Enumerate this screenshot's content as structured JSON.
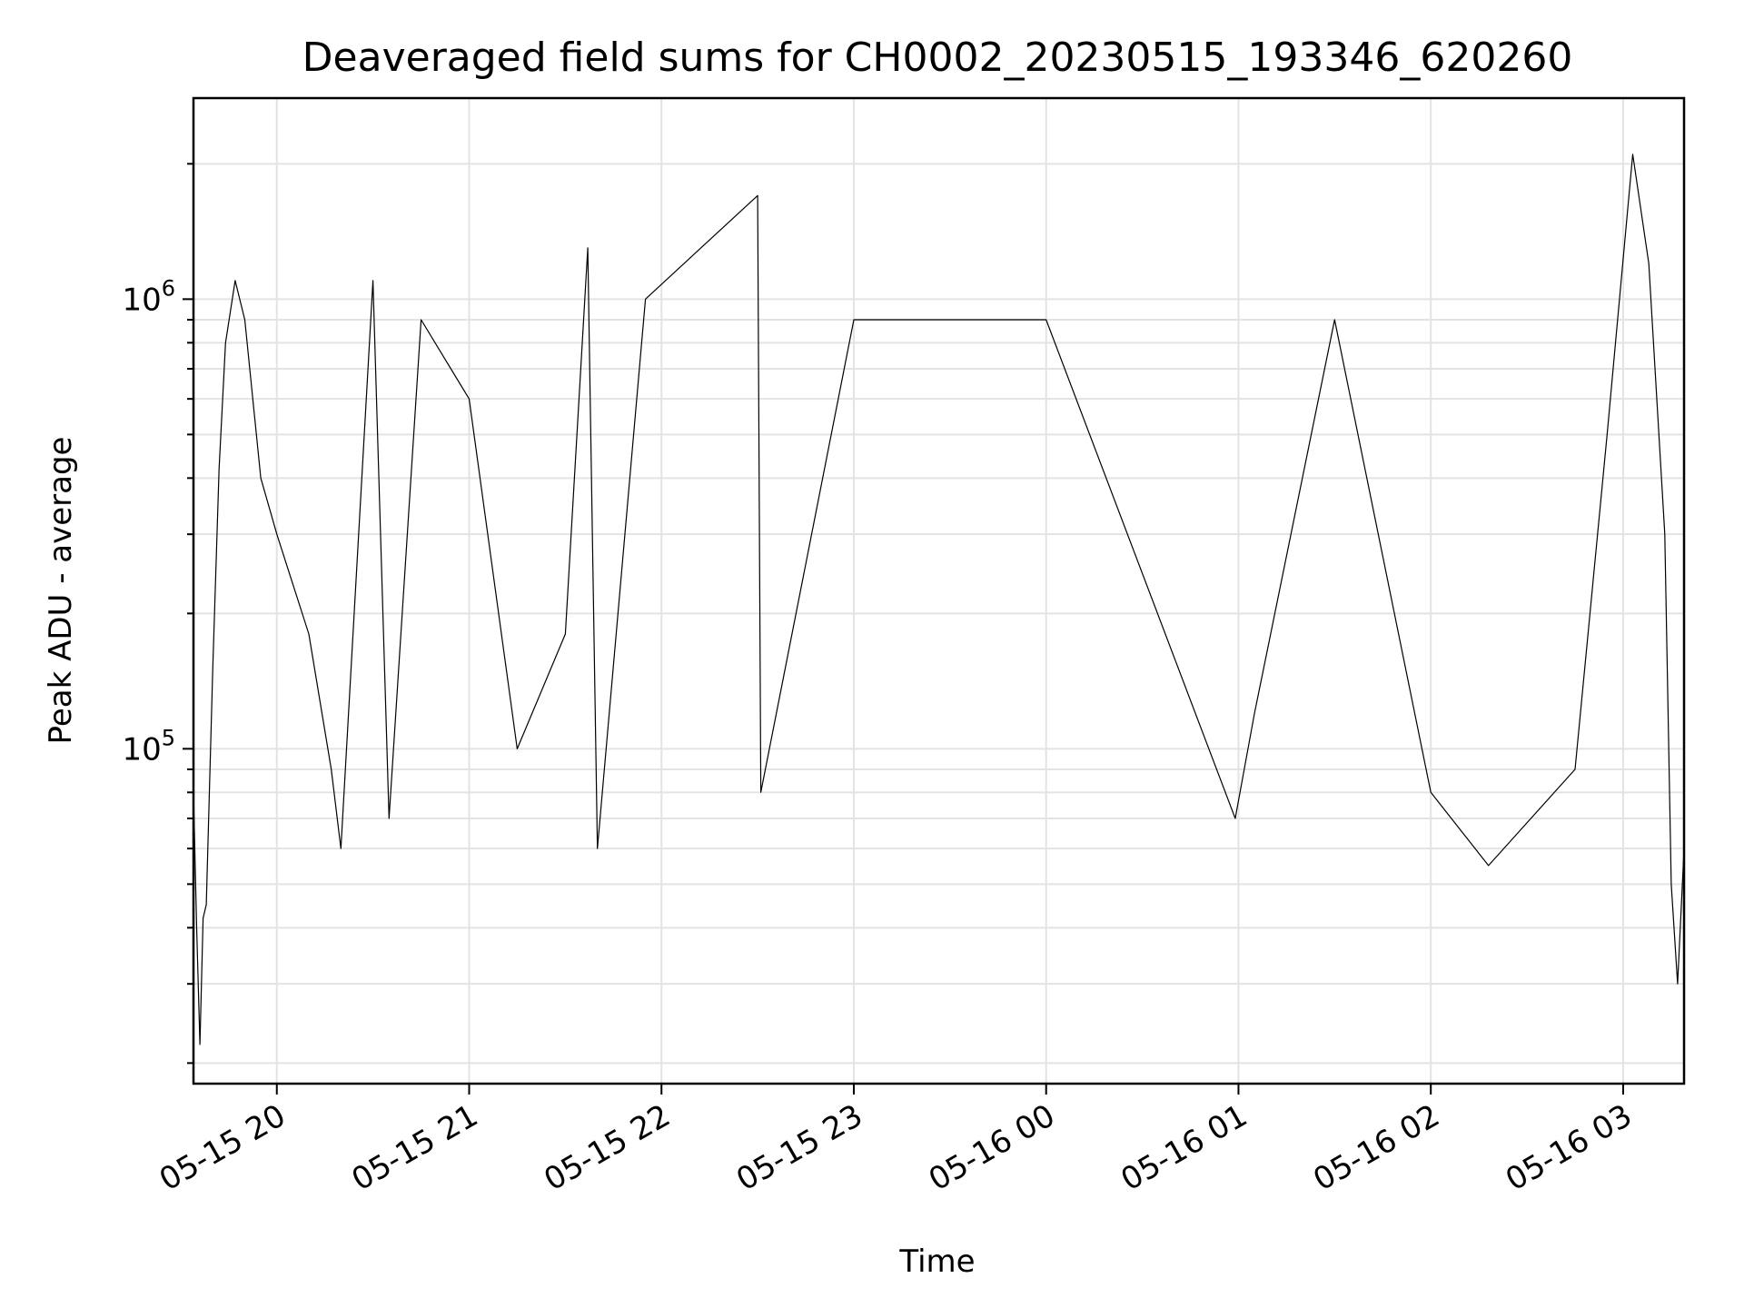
{
  "chart_data": {
    "type": "line",
    "title": "Deaveraged field sums for CH0002_20230515_193346_620260",
    "xlabel": "Time",
    "ylabel": "Peak ADU - average",
    "x_axis": {
      "type": "time",
      "range": [
        "2023-05-15 19:34",
        "2023-05-16 03:19"
      ],
      "ticks": [
        {
          "value": "2023-05-15 20:00",
          "label": "05-15 20"
        },
        {
          "value": "2023-05-15 21:00",
          "label": "05-15 21"
        },
        {
          "value": "2023-05-15 22:00",
          "label": "05-15 22"
        },
        {
          "value": "2023-05-15 23:00",
          "label": "05-15 23"
        },
        {
          "value": "2023-05-16 00:00",
          "label": "05-16 00"
        },
        {
          "value": "2023-05-16 01:00",
          "label": "05-16 01"
        },
        {
          "value": "2023-05-16 02:00",
          "label": "05-16 02"
        },
        {
          "value": "2023-05-16 03:00",
          "label": "05-16 03"
        }
      ]
    },
    "y_axis": {
      "scale": "log",
      "range": [
        18000,
        2800000
      ],
      "ticks": [
        {
          "value": 100000,
          "base": "10",
          "exp": "5"
        },
        {
          "value": 1000000,
          "base": "10",
          "exp": "6"
        }
      ]
    },
    "grid": true,
    "line_color": "#000000",
    "series": [
      {
        "values_note": "",
        "points": [
          [
            "2023-05-15 19:34",
            80000
          ],
          [
            "2023-05-15 19:35",
            40000
          ],
          [
            "2023-05-15 19:36",
            22000
          ],
          [
            "2023-05-15 19:37",
            42000
          ],
          [
            "2023-05-15 19:38",
            45000
          ],
          [
            "2023-05-15 19:40",
            150000
          ],
          [
            "2023-05-15 19:42",
            420000
          ],
          [
            "2023-05-15 19:44",
            800000
          ],
          [
            "2023-05-15 19:47",
            1100000
          ],
          [
            "2023-05-15 19:50",
            900000
          ],
          [
            "2023-05-15 19:55",
            400000
          ],
          [
            "2023-05-15 20:00",
            300000
          ],
          [
            "2023-05-15 20:10",
            180000
          ],
          [
            "2023-05-15 20:17",
            90000
          ],
          [
            "2023-05-15 20:20",
            60000
          ],
          [
            "2023-05-15 20:30",
            1100000
          ],
          [
            "2023-05-15 20:35",
            70000
          ],
          [
            "2023-05-15 20:45",
            900000
          ],
          [
            "2023-05-15 21:00",
            600000
          ],
          [
            "2023-05-15 21:15",
            100000
          ],
          [
            "2023-05-15 21:30",
            180000
          ],
          [
            "2023-05-15 21:37",
            1300000
          ],
          [
            "2023-05-15 21:40",
            60000
          ],
          [
            "2023-05-15 21:55",
            1000000
          ],
          [
            "2023-05-15 22:30",
            1700000
          ],
          [
            "2023-05-15 22:31",
            80000
          ],
          [
            "2023-05-15 23:00",
            900000
          ],
          [
            "2023-05-16 00:00",
            900000
          ],
          [
            "2023-05-16 00:59",
            70000
          ],
          [
            "2023-05-16 01:05",
            120000
          ],
          [
            "2023-05-16 01:30",
            900000
          ],
          [
            "2023-05-16 02:00",
            80000
          ],
          [
            "2023-05-16 02:18",
            55000
          ],
          [
            "2023-05-16 02:45",
            90000
          ],
          [
            "2023-05-16 02:55",
            500000
          ],
          [
            "2023-05-16 03:03",
            2100000
          ],
          [
            "2023-05-16 03:08",
            1200000
          ],
          [
            "2023-05-16 03:13",
            300000
          ],
          [
            "2023-05-16 03:15",
            50000
          ],
          [
            "2023-05-16 03:17",
            30000
          ],
          [
            "2023-05-16 03:19",
            60000
          ]
        ]
      }
    ]
  }
}
